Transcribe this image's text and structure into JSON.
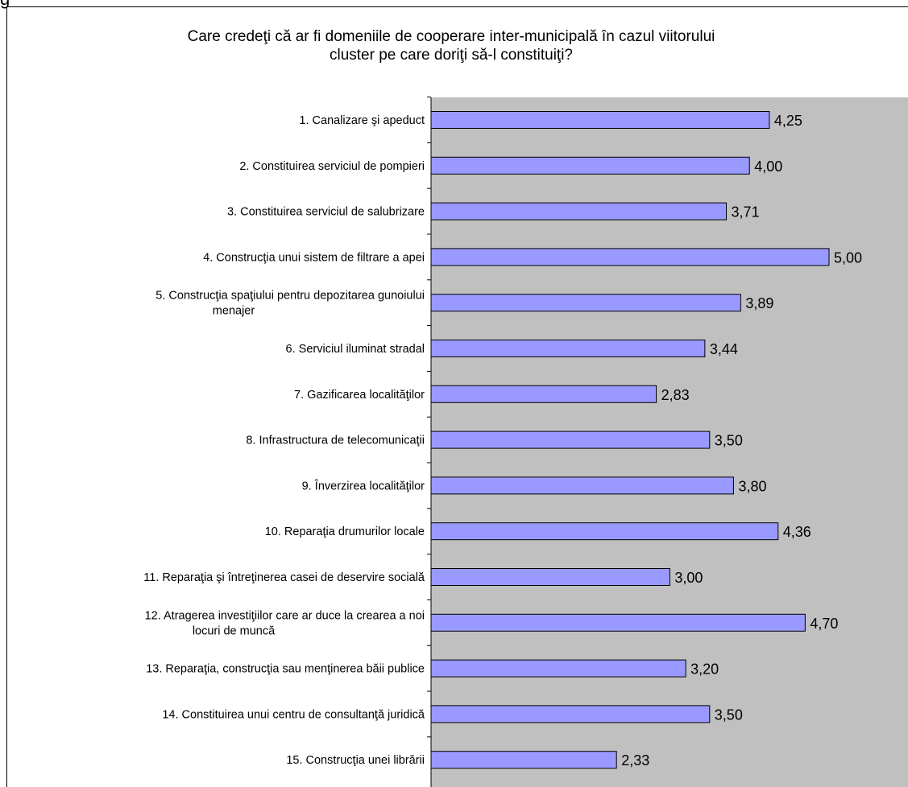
{
  "header_fragment": "g",
  "chart_data": {
    "type": "bar",
    "orientation": "horizontal",
    "title": "Care credeţi că ar fi domeniile de cooperare inter-municipală în cazul viitorului\ncluster pe care doriţi să-l constituiţi?",
    "categories": [
      [
        "1. Canalizare şi apeduct"
      ],
      [
        "2. Constituirea serviciul de pompieri"
      ],
      [
        "3. Constituirea serviciul de salubrizare "
      ],
      [
        "4. Construcţia unui sistem de filtrare a apei"
      ],
      [
        "5. Construcţia spaţiului pentru depozitarea gunoiului",
        "menajer"
      ],
      [
        "6. Serviciul iluminat stradal"
      ],
      [
        "7. Gazificarea localităţilor"
      ],
      [
        "8. Infrastructura de telecomunicaţii"
      ],
      [
        "9. Înverzirea localităţilor"
      ],
      [
        "10. Reparaţia drumurilor locale"
      ],
      [
        "11. Reparaţia şi întreţinerea casei de deservire socială"
      ],
      [
        "12. Atragerea investiţiilor care ar duce la crearea a noi",
        "locuri de  muncă"
      ],
      [
        "13. Reparaţia, construcţia sau menţinerea băii publice"
      ],
      [
        "14. Constituirea unui centru de consultanţă juridică "
      ],
      [
        "15. Construcţia unei librării"
      ]
    ],
    "values": [
      4.25,
      4.0,
      3.71,
      5.0,
      3.89,
      3.44,
      2.83,
      3.5,
      3.8,
      4.36,
      3.0,
      4.7,
      3.2,
      3.5,
      2.33
    ],
    "value_labels": [
      "4,25",
      "4,00",
      "3,71",
      "5,00",
      "3,89",
      "3,44",
      "2,83",
      "3,50",
      "3,80",
      "4,36",
      "3,00",
      "4,70",
      "3,20",
      "3,50",
      "2,33"
    ],
    "xlim": [
      0,
      6
    ],
    "grid": false,
    "legend": "none",
    "colors": {
      "bar": "#9999ff",
      "plot_background": "#c0c0c0",
      "bar_border": "#000000"
    }
  }
}
